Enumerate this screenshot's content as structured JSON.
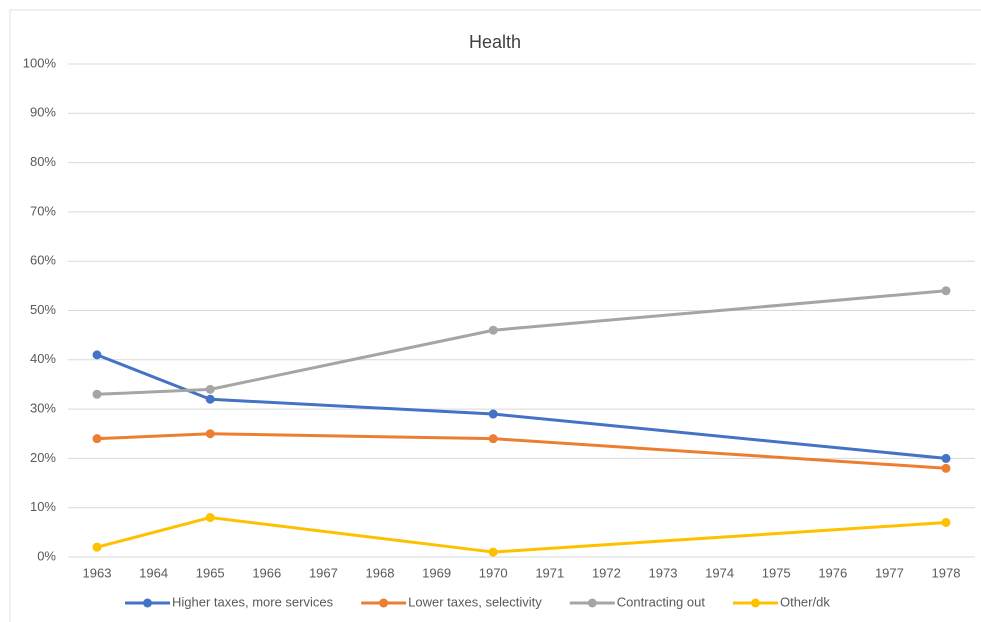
{
  "chart_data": {
    "type": "line",
    "title": "Health",
    "x": [
      1963,
      1965,
      1970,
      1978
    ],
    "xlim": [
      1963,
      1978
    ],
    "xticks": [
      1963,
      1964,
      1965,
      1966,
      1967,
      1968,
      1969,
      1970,
      1971,
      1972,
      1973,
      1974,
      1975,
      1976,
      1977,
      1978
    ],
    "ylim": [
      0,
      100
    ],
    "yticks": [
      {
        "value": 0,
        "label": "0%"
      },
      {
        "value": 10,
        "label": "10%"
      },
      {
        "value": 20,
        "label": "20%"
      },
      {
        "value": 30,
        "label": "30%"
      },
      {
        "value": 40,
        "label": "40%"
      },
      {
        "value": 50,
        "label": "50%"
      },
      {
        "value": 60,
        "label": "60%"
      },
      {
        "value": 70,
        "label": "70%"
      },
      {
        "value": 80,
        "label": "80%"
      },
      {
        "value": 90,
        "label": "90%"
      },
      {
        "value": 100,
        "label": "100%"
      }
    ],
    "grid": true,
    "legend": "bottom",
    "series": [
      {
        "name": "Higher taxes, more services",
        "color": "#4472c4",
        "values": [
          41,
          32,
          29,
          20
        ]
      },
      {
        "name": "Lower taxes, selectivity",
        "color": "#ed7d31",
        "values": [
          24,
          25,
          24,
          18
        ]
      },
      {
        "name": "Contracting out",
        "color": "#a5a5a5",
        "values": [
          33,
          34,
          46,
          54
        ]
      },
      {
        "name": "Other/dk",
        "color": "#ffc000",
        "values": [
          2,
          8,
          1,
          7
        ]
      }
    ]
  }
}
